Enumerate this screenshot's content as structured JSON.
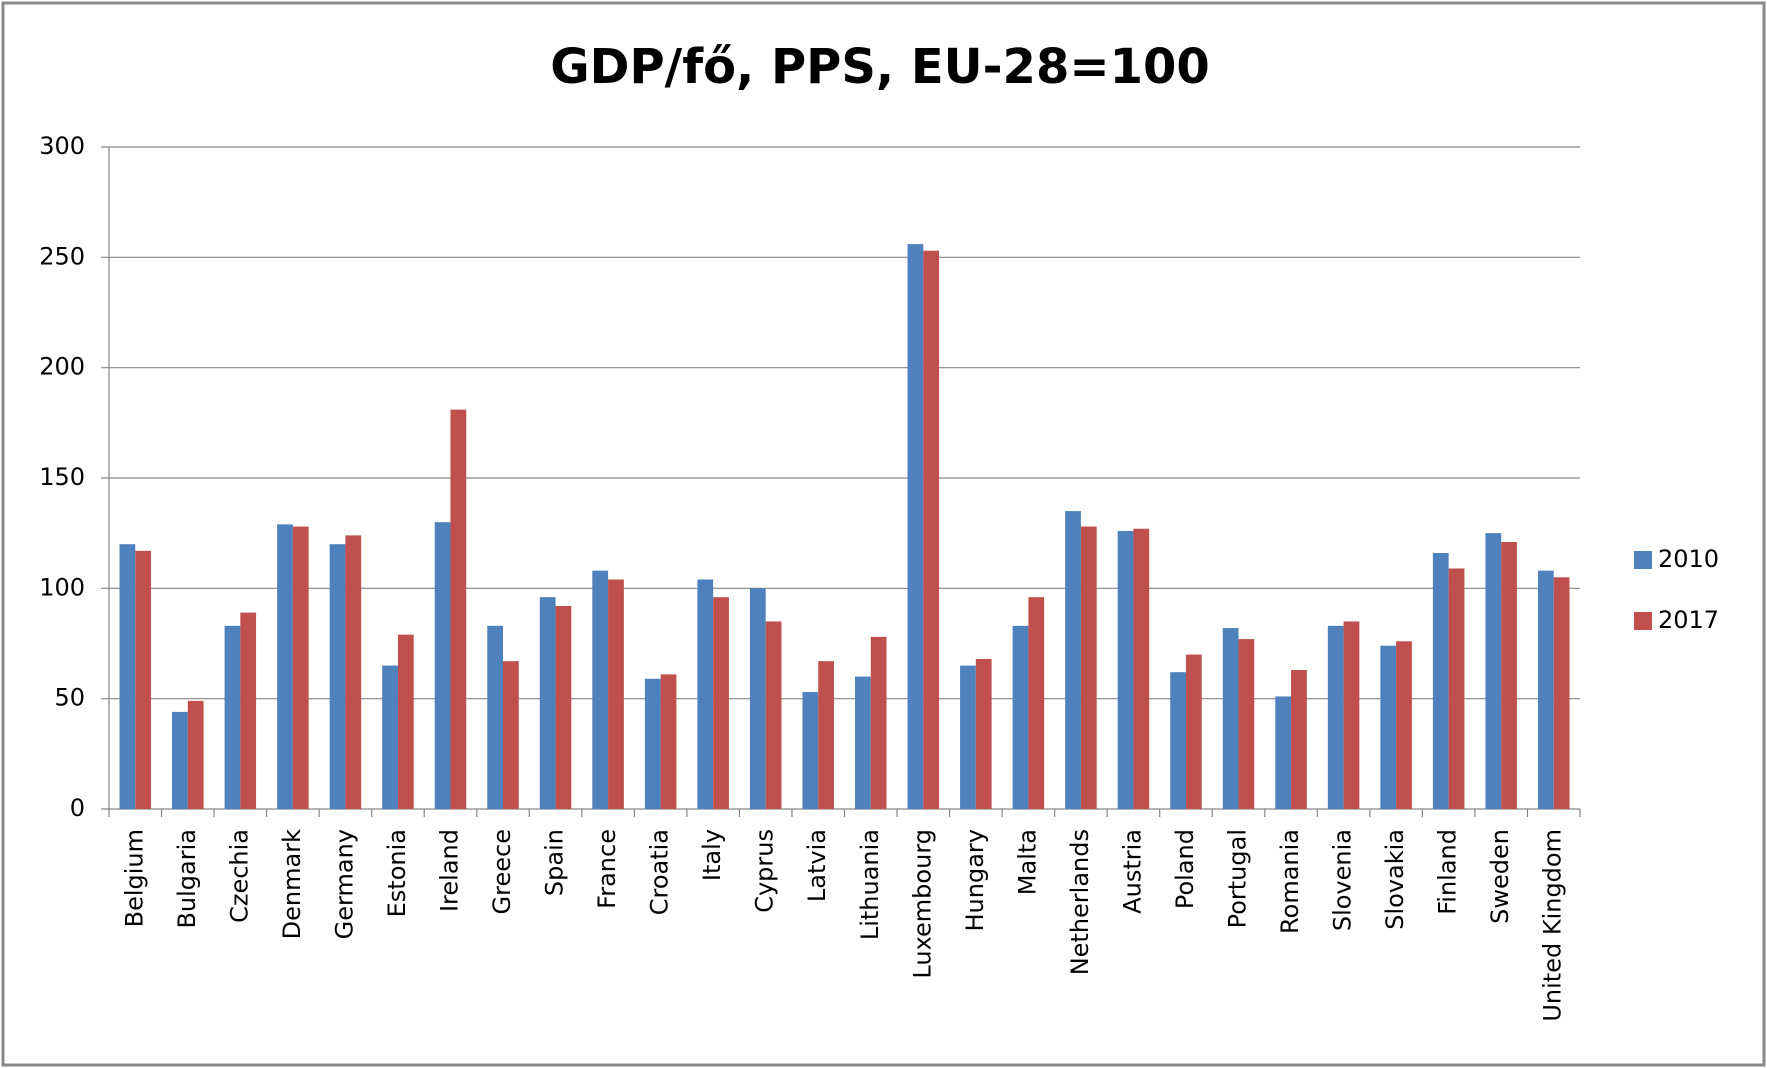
{
  "chart_data": {
    "type": "bar",
    "title": "GDP/fő, PPS, EU-28=100",
    "categories": [
      "Belgium",
      "Bulgaria",
      "Czechia",
      "Denmark",
      "Germany",
      "Estonia",
      "Ireland",
      "Greece",
      "Spain",
      "France",
      "Croatia",
      "Italy",
      "Cyprus",
      "Latvia",
      "Lithuania",
      "Luxembourg",
      "Hungary",
      "Malta",
      "Netherlands",
      "Austria",
      "Poland",
      "Portugal",
      "Romania",
      "Slovenia",
      "Slovakia",
      "Finland",
      "Sweden",
      "United Kingdom"
    ],
    "series": [
      {
        "name": "2010",
        "color": "#4f81bd",
        "values": [
          120,
          44,
          83,
          129,
          120,
          65,
          130,
          83,
          96,
          108,
          59,
          104,
          100,
          53,
          60,
          256,
          65,
          83,
          135,
          126,
          62,
          82,
          51,
          83,
          74,
          116,
          125,
          108
        ]
      },
      {
        "name": "2017",
        "color": "#c0504d",
        "values": [
          117,
          49,
          89,
          128,
          124,
          79,
          181,
          67,
          92,
          104,
          61,
          96,
          85,
          67,
          78,
          253,
          68,
          96,
          128,
          127,
          70,
          77,
          63,
          85,
          76,
          109,
          121,
          105
        ]
      }
    ],
    "ylim": [
      0,
      300
    ],
    "yticks": [
      0,
      50,
      100,
      150,
      200,
      250,
      300
    ],
    "grid": true,
    "legend": "right"
  }
}
